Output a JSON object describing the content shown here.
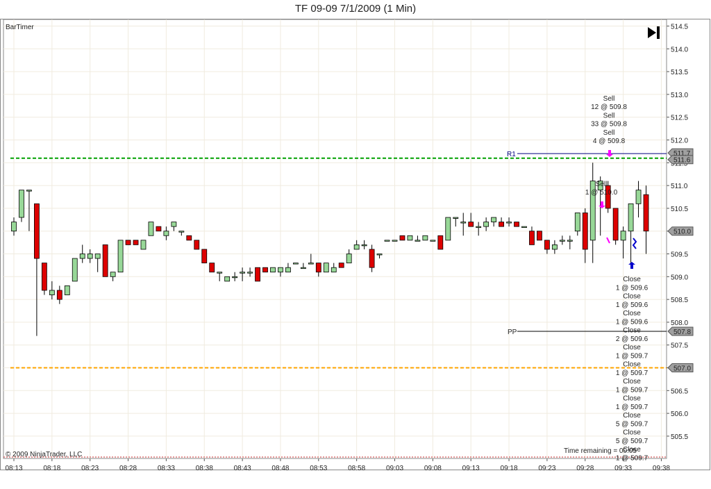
{
  "window": {
    "title": "TF 09-09  7/1/2009 (1 Min)"
  },
  "indicator_label": "BarTimer",
  "copyright": "© 2009 NinjaTrader, LLC",
  "time_remaining": "Time remaining = 00:05",
  "skip_button_icon": "skip-to-end-icon",
  "colors": {
    "up": "#98d898",
    "down": "#dd0000",
    "r1": "#00007f",
    "pp": "#000000",
    "green_line": "#00a000",
    "orange_line": "#ffa500",
    "sell_arrow": "#ff00ff",
    "buy_arrow": "#0000cc"
  },
  "chart_data": {
    "type": "candlestick",
    "xlabels": [
      "08:13",
      "08:18",
      "08:23",
      "08:28",
      "08:33",
      "08:38",
      "08:43",
      "08:48",
      "08:53",
      "08:58",
      "09:03",
      "09:08",
      "09:13",
      "09:18",
      "09:23",
      "09:28",
      "09:33",
      "09:38"
    ],
    "yticks": [
      514.5,
      514.0,
      513.5,
      513.0,
      512.5,
      512.0,
      511.5,
      511.0,
      510.5,
      510.0,
      509.5,
      509.0,
      508.5,
      508.0,
      507.5,
      507.0,
      506.5,
      506.0,
      505.5
    ],
    "ylim": [
      505.0,
      514.6
    ],
    "ohlc": [
      [
        510.0,
        510.3,
        509.9,
        510.2
      ],
      [
        510.3,
        510.9,
        510.2,
        510.9
      ],
      [
        510.9,
        510.9,
        510.0,
        510.9
      ],
      [
        510.6,
        510.6,
        507.7,
        509.4
      ],
      [
        509.3,
        509.3,
        508.6,
        508.7
      ],
      [
        508.6,
        508.9,
        508.5,
        508.7
      ],
      [
        508.7,
        508.8,
        508.4,
        508.5
      ],
      [
        508.6,
        508.8,
        508.6,
        508.8
      ],
      [
        508.9,
        509.4,
        508.9,
        509.4
      ],
      [
        509.4,
        509.7,
        509.3,
        509.5
      ],
      [
        509.4,
        509.6,
        509.3,
        509.5
      ],
      [
        509.4,
        509.5,
        509.1,
        509.5
      ],
      [
        509.7,
        509.7,
        509.0,
        509.0
      ],
      [
        509.0,
        509.1,
        508.9,
        509.1
      ],
      [
        509.1,
        509.8,
        509.1,
        509.8
      ],
      [
        509.8,
        509.8,
        509.7,
        509.7
      ],
      [
        509.8,
        509.8,
        509.7,
        509.7
      ],
      [
        509.6,
        509.8,
        509.6,
        509.8
      ],
      [
        509.9,
        510.2,
        509.9,
        510.2
      ],
      [
        510.1,
        510.1,
        510.0,
        510.0
      ],
      [
        509.9,
        510.1,
        509.8,
        510.0
      ],
      [
        510.1,
        510.2,
        510.0,
        510.2
      ],
      [
        510.0,
        510.0,
        509.9,
        510.0
      ],
      [
        509.9,
        509.9,
        509.8,
        509.8
      ],
      [
        509.8,
        509.8,
        509.6,
        509.6
      ],
      [
        509.6,
        509.6,
        509.3,
        509.3
      ],
      [
        509.3,
        509.3,
        509.1,
        509.1
      ],
      [
        509.1,
        509.1,
        508.9,
        509.1
      ],
      [
        508.9,
        509.0,
        508.9,
        509.0
      ],
      [
        509.0,
        509.1,
        508.9,
        509.0
      ],
      [
        509.1,
        509.2,
        508.9,
        509.1
      ],
      [
        509.1,
        509.2,
        509.0,
        509.1
      ],
      [
        509.2,
        509.2,
        508.9,
        508.9
      ],
      [
        509.2,
        509.2,
        509.1,
        509.1
      ],
      [
        509.1,
        509.2,
        509.1,
        509.2
      ],
      [
        509.1,
        509.2,
        509.0,
        509.2
      ],
      [
        509.1,
        509.3,
        509.1,
        509.2
      ],
      [
        509.3,
        509.3,
        509.3,
        509.3
      ],
      [
        509.2,
        509.3,
        509.2,
        509.2
      ],
      [
        509.3,
        509.5,
        509.3,
        509.3
      ],
      [
        509.3,
        509.3,
        509.0,
        509.1
      ],
      [
        509.1,
        509.3,
        509.1,
        509.3
      ],
      [
        509.1,
        509.3,
        509.1,
        509.2
      ],
      [
        509.3,
        509.3,
        509.2,
        509.2
      ],
      [
        509.3,
        509.6,
        509.3,
        509.5
      ],
      [
        509.6,
        509.8,
        509.6,
        509.7
      ],
      [
        509.7,
        509.8,
        509.6,
        509.7
      ],
      [
        509.6,
        509.7,
        509.1,
        509.2
      ],
      [
        509.5,
        509.5,
        509.4,
        509.5
      ],
      [
        509.8,
        509.8,
        509.8,
        509.8
      ],
      [
        509.8,
        509.8,
        509.8,
        509.8
      ],
      [
        509.9,
        509.9,
        509.8,
        509.8
      ],
      [
        509.8,
        509.9,
        509.8,
        509.9
      ],
      [
        509.8,
        509.9,
        509.8,
        509.8
      ],
      [
        509.8,
        509.9,
        509.8,
        509.9
      ],
      [
        509.8,
        509.8,
        509.8,
        509.8
      ],
      [
        509.9,
        509.9,
        509.6,
        509.6
      ],
      [
        509.8,
        510.3,
        509.8,
        510.3
      ],
      [
        510.3,
        510.3,
        510.1,
        510.3
      ],
      [
        510.2,
        510.4,
        509.9,
        510.2
      ],
      [
        510.2,
        510.4,
        510.1,
        510.1
      ],
      [
        510.1,
        510.2,
        509.9,
        510.1
      ],
      [
        510.1,
        510.3,
        510.0,
        510.2
      ],
      [
        510.2,
        510.3,
        510.1,
        510.3
      ],
      [
        510.2,
        510.3,
        510.1,
        510.1
      ],
      [
        510.2,
        510.3,
        510.1,
        510.2
      ],
      [
        510.2,
        510.2,
        510.1,
        510.1
      ],
      [
        510.1,
        510.1,
        510.1,
        510.1
      ],
      [
        510.0,
        510.1,
        509.7,
        509.7
      ],
      [
        510.0,
        510.0,
        509.8,
        509.8
      ],
      [
        509.8,
        509.8,
        509.5,
        509.6
      ],
      [
        509.6,
        509.8,
        509.5,
        509.7
      ],
      [
        509.8,
        509.9,
        509.7,
        509.8
      ],
      [
        509.8,
        509.9,
        509.6,
        509.8
      ],
      [
        510.0,
        510.4,
        509.9,
        510.4
      ],
      [
        510.4,
        510.5,
        509.3,
        509.6
      ],
      [
        509.8,
        511.5,
        509.3,
        511.1
      ],
      [
        510.9,
        511.2,
        509.9,
        511.1
      ],
      [
        511.0,
        511.1,
        510.4,
        510.5
      ],
      [
        510.5,
        510.5,
        509.7,
        509.8
      ],
      [
        509.8,
        510.1,
        509.4,
        510.0
      ],
      [
        510.0,
        510.6,
        509.3,
        510.6
      ],
      [
        510.6,
        511.1,
        510.3,
        510.9
      ],
      [
        510.8,
        511.0,
        509.5,
        510.0
      ]
    ],
    "levels": [
      {
        "name": "R1",
        "value": 511.7,
        "label": "511.7"
      },
      {
        "name": "",
        "value": 511.6,
        "label": "511.6"
      },
      {
        "name": "PP",
        "value": 507.8,
        "label": "507.8"
      },
      {
        "name": "",
        "value": 507.0,
        "label": "507.0"
      }
    ],
    "last_price": {
      "value": 510.0,
      "label": "510.0"
    },
    "annotations": {
      "sell_top": [
        "Sell",
        "12 @ 509.8",
        "Sell",
        "33 @ 509.8",
        "Sell",
        "4 @ 509.8"
      ],
      "sell_mid": [
        "Sell",
        "1 @ 510.0"
      ],
      "close_list": [
        "Close",
        "1 @ 509.6",
        "Close",
        "1 @ 509.6",
        "Close",
        "1 @ 509.6",
        "Close",
        "2 @ 509.6",
        "Close",
        "1 @ 509.7",
        "Close",
        "1 @ 509.7",
        "Close",
        "1 @ 509.7",
        "Close",
        "1 @ 509.7",
        "Close",
        "5 @ 509.7",
        "Close",
        "5 @ 509.7",
        "Close",
        "1 @ 509.7"
      ]
    }
  }
}
